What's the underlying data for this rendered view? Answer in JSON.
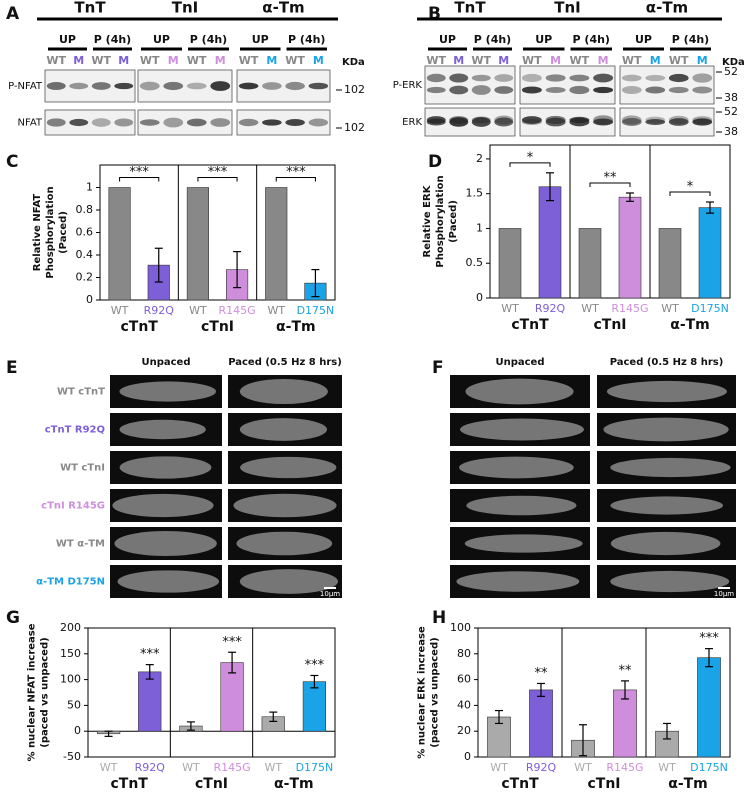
{
  "panel_labels": [
    "A",
    "B",
    "C",
    "D",
    "E",
    "F",
    "G",
    "H"
  ],
  "blot_a": {
    "groups": [
      {
        "name": "TnT",
        "conditions": [
          "UP",
          "P (4h)"
        ],
        "lanes": [
          "WT",
          "M",
          "WT",
          "M"
        ],
        "color": "#7d5fd8"
      },
      {
        "name": "TnI",
        "conditions": [
          "UP",
          "P (4h)"
        ],
        "lanes": [
          "WT",
          "M",
          "WT",
          "M"
        ],
        "color": "#cf8edc"
      },
      {
        "name": "α-Tm",
        "conditions": [
          "UP",
          "P (4h)"
        ],
        "lanes": [
          "WT",
          "M",
          "WT",
          "M"
        ],
        "color": "#1aa3e6"
      }
    ],
    "rows": [
      "P-NFAT",
      "NFAT"
    ],
    "unit": "KDa",
    "markers": [
      "102",
      "102"
    ]
  },
  "blot_b": {
    "groups": [
      {
        "name": "TnT",
        "conditions": [
          "UP",
          "P (4h)"
        ],
        "lanes": [
          "WT",
          "M",
          "WT",
          "M"
        ],
        "color": "#7d5fd8"
      },
      {
        "name": "TnI",
        "conditions": [
          "UP",
          "P (4h)"
        ],
        "lanes": [
          "WT",
          "M",
          "WT",
          "M"
        ],
        "color": "#cf8edc"
      },
      {
        "name": "α-Tm",
        "conditions": [
          "UP",
          "P (4h)"
        ],
        "lanes": [
          "WT",
          "M",
          "WT",
          "M"
        ],
        "color": "#1aa3e6"
      }
    ],
    "rows": [
      "P-ERK",
      "ERK"
    ],
    "unit": "KDa",
    "markers": [
      "52",
      "38",
      "52",
      "38"
    ]
  },
  "micrographs_e": {
    "columns": [
      "Unpaced",
      "Paced (0.5 Hz 8 hrs)"
    ],
    "rows": [
      {
        "label": "WT cTnT",
        "color": "#888888"
      },
      {
        "label": "cTnT R92Q",
        "color": "#7d5fd8"
      },
      {
        "label": "WT cTnI",
        "color": "#888888"
      },
      {
        "label": "cTnI R145G",
        "color": "#cf8edc"
      },
      {
        "label": "WT α-TM",
        "color": "#888888"
      },
      {
        "label": "α-TM D175N",
        "color": "#1aa3e6"
      }
    ],
    "scale_bar": "10μm"
  },
  "micrographs_f": {
    "columns": [
      "Unpaced",
      "Paced (0.5 Hz 8 hrs)"
    ],
    "scale_bar": "10μm"
  },
  "chart_data": [
    {
      "type": "bar",
      "y_label": [
        "Relative NFAT",
        "Phosphorylation",
        "(Paced)"
      ],
      "categories": [
        "WT",
        "R92Q",
        "WT",
        "R145G",
        "WT",
        "D175N"
      ],
      "groups": [
        "cTnT",
        "cTnI",
        "α-Tm"
      ],
      "values": [
        1,
        0.31,
        1,
        0.27,
        1,
        0.15
      ],
      "errors": [
        0,
        0.15,
        0,
        0.16,
        0,
        0.12
      ],
      "colors": [
        "#888888",
        "#7d5fd8",
        "#888888",
        "#cf8edc",
        "#888888",
        "#1aa3e6"
      ],
      "significance": [
        "***",
        "***",
        "***"
      ],
      "bracket": true,
      "ylim": [
        0,
        1.2
      ],
      "yticks": [
        0,
        0.2,
        0.4,
        0.6,
        0.8,
        1
      ]
    },
    {
      "type": "bar",
      "y_label": [
        "Relative ERK",
        "Phosphorylation",
        "(Paced)"
      ],
      "categories": [
        "WT",
        "R92Q",
        "WT",
        "R145G",
        "WT",
        "D175N"
      ],
      "groups": [
        "cTnT",
        "cTnI",
        "α-Tm"
      ],
      "values": [
        1,
        1.6,
        1,
        1.45,
        1,
        1.3
      ],
      "errors": [
        0,
        0.2,
        0,
        0.06,
        0,
        0.08
      ],
      "colors": [
        "#888888",
        "#7d5fd8",
        "#888888",
        "#cf8edc",
        "#888888",
        "#1aa3e6"
      ],
      "significance": [
        "*",
        "**",
        "*"
      ],
      "bracket": true,
      "ylim": [
        0,
        2.2
      ],
      "yticks": [
        0,
        0.5,
        1,
        1.5,
        2
      ]
    },
    {
      "type": "bar",
      "y_label": [
        "% nuclear NFAT increase",
        "(paced vs unpaced)"
      ],
      "categories": [
        "WT",
        "R92Q",
        "WT",
        "R145G",
        "WT",
        "D175N"
      ],
      "groups": [
        "cTnT",
        "cTnI",
        "α-Tm"
      ],
      "values": [
        -5,
        115,
        10,
        133,
        28,
        96
      ],
      "errors": [
        5,
        14,
        8,
        20,
        9,
        12
      ],
      "colors": [
        "#aaaaaa",
        "#7d5fd8",
        "#aaaaaa",
        "#cf8edc",
        "#aaaaaa",
        "#1aa3e6"
      ],
      "significance": [
        "***",
        "***",
        "***"
      ],
      "bracket": false,
      "ylim": [
        -50,
        200
      ],
      "yticks": [
        -50,
        0,
        50,
        100,
        150,
        200
      ]
    },
    {
      "type": "bar",
      "y_label": [
        "% nuclear ERK increase",
        "(paced vs unpaced)"
      ],
      "categories": [
        "WT",
        "R92Q",
        "WT",
        "R145G",
        "WT",
        "D175N"
      ],
      "groups": [
        "cTnT",
        "cTnI",
        "α-Tm"
      ],
      "values": [
        31,
        52,
        13,
        52,
        20,
        77
      ],
      "errors": [
        5,
        5,
        12,
        7,
        6,
        7
      ],
      "colors": [
        "#aaaaaa",
        "#7d5fd8",
        "#aaaaaa",
        "#cf8edc",
        "#aaaaaa",
        "#1aa3e6"
      ],
      "significance": [
        "**",
        "**",
        "***"
      ],
      "bracket": false,
      "ylim": [
        0,
        100
      ],
      "yticks": [
        0,
        20,
        40,
        60,
        80,
        100
      ]
    }
  ]
}
